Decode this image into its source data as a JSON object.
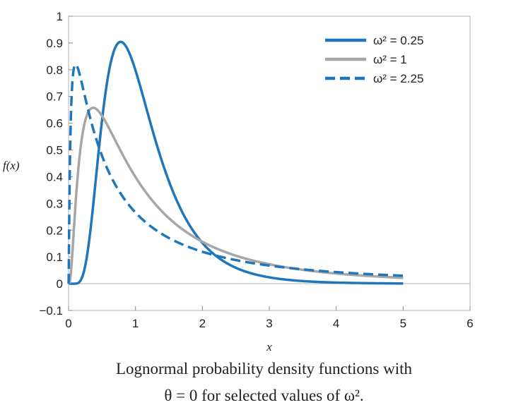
{
  "chart_data": {
    "type": "line",
    "title": "",
    "xlabel": "x",
    "ylabel": "f(x)",
    "xlim": [
      0,
      6
    ],
    "ylim": [
      -0.1,
      1
    ],
    "xticks": [
      "0",
      "1",
      "2",
      "3",
      "4",
      "5",
      "6"
    ],
    "yticks": [
      "−0.1",
      "0",
      "0.1",
      "0.2",
      "0.3",
      "0.4",
      "0.5",
      "0.6",
      "0.7",
      "0.8",
      "0.9",
      "1"
    ],
    "x_range": [
      0,
      5
    ],
    "legend_position": "top-right",
    "series": [
      {
        "name": "ω² = 0.25",
        "omega2": 0.25,
        "theta": 0,
        "color": "#1f76bb",
        "style": "solid"
      },
      {
        "name": "ω² = 1",
        "omega2": 1,
        "theta": 0,
        "color": "#a6a6a6",
        "style": "solid"
      },
      {
        "name": "ω² = 2.25",
        "omega2": 2.25,
        "theta": 0,
        "color": "#1f76bb",
        "style": "dashed"
      }
    ]
  },
  "caption": {
    "line1": "Lognormal probability density functions with",
    "line2": "θ = 0 for selected values of ω²."
  }
}
